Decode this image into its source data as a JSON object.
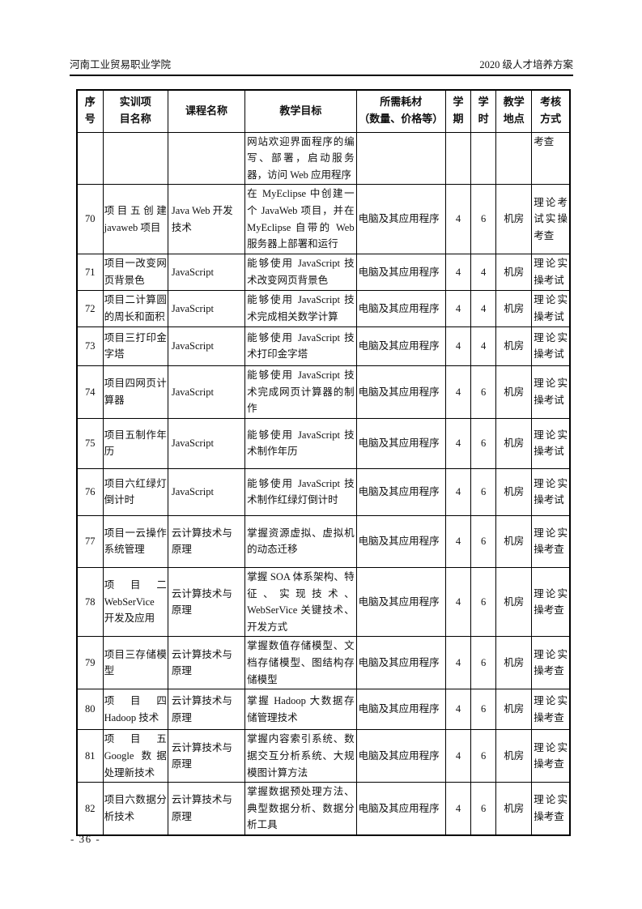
{
  "colors": {
    "ink": "#000000",
    "paper": "#ffffff"
  },
  "page": {
    "header_left": "河南工业贸易职业学院",
    "header_right": "2020 级人才培养方案",
    "footer_page_number": "- 36 -"
  },
  "table": {
    "columns": [
      {
        "key": "index",
        "label": "序\n号"
      },
      {
        "key": "project",
        "label": "实训项\n目名称"
      },
      {
        "key": "course",
        "label": "课程名称"
      },
      {
        "key": "goal",
        "label": "教学目标"
      },
      {
        "key": "materials",
        "label": "所需耗材\n（数量、价格等）"
      },
      {
        "key": "semester",
        "label": "学\n期"
      },
      {
        "key": "hours",
        "label": "学\n时"
      },
      {
        "key": "location",
        "label": "教学\n地点"
      },
      {
        "key": "assessment",
        "label": "考核\n方式"
      }
    ],
    "rows": [
      {
        "index": "",
        "project": "",
        "course": "",
        "goal": "网站欢迎界面程序的编写、部署，启动服务器，访问 Web 应用程序",
        "materials": "",
        "semester": "",
        "hours": "",
        "location": "",
        "assessment": "考查"
      },
      {
        "index": "70",
        "project": "项目五创建javaweb 项目",
        "course": "Java Web 开发技术",
        "goal": "在 MyEclipse 中创建一个 JavaWeb 项目，并在 MyEclipse 自带的 Web 服务器上部署和运行",
        "materials": "电脑及其应用程序",
        "semester": "4",
        "hours": "6",
        "location": "机房",
        "assessment": "理论考试实操考查"
      },
      {
        "index": "71",
        "project": "项目一改变网页背景色",
        "course": "JavaScript",
        "goal": "能够使用 JavaScript 技术改变网页背景色",
        "materials": "电脑及其应用程序",
        "semester": "4",
        "hours": "4",
        "location": "机房",
        "assessment": "理论实操考试"
      },
      {
        "index": "72",
        "project": "项目二计算圆的周长和面积",
        "course": "JavaScript",
        "goal": "能够使用 JavaScript 技术完成相关数学计算",
        "materials": "电脑及其应用程序",
        "semester": "4",
        "hours": "4",
        "location": "机房",
        "assessment": "理论实操考试"
      },
      {
        "index": "73",
        "project": "项目三打印金字塔",
        "course": "JavaScript",
        "goal": "能够使用 JavaScript 技术打印金字塔",
        "materials": "电脑及其应用程序",
        "semester": "4",
        "hours": "4",
        "location": "机房",
        "assessment": "理论实操考试"
      },
      {
        "index": "74",
        "project": "项目四网页计算器",
        "course": "JavaScript",
        "goal": "能够使用 JavaScript 技术完成网页计算器的制作",
        "materials": "电脑及其应用程序",
        "semester": "4",
        "hours": "6",
        "location": "机房",
        "assessment": "理论实操考试"
      },
      {
        "index": "75",
        "project": "项目五制作年历",
        "course": "JavaScript",
        "goal": "能够使用 JavaScript 技术制作年历",
        "materials": "电脑及其应用程序",
        "semester": "4",
        "hours": "6",
        "location": "机房",
        "assessment": "理论实操考试"
      },
      {
        "index": "76",
        "project": "项目六红绿灯倒计时",
        "course": "JavaScript",
        "goal": "能够使用 JavaScript 技术制作红绿灯倒计时",
        "materials": "电脑及其应用程序",
        "semester": "4",
        "hours": "6",
        "location": "机房",
        "assessment": "理论实操考试"
      },
      {
        "index": "77",
        "project": "项目一云操作系统管理",
        "course": "云计算技术与原理",
        "goal": "掌握资源虚拟、虚拟机的动态迁移",
        "materials": "电脑及其应用程序",
        "semester": "4",
        "hours": "6",
        "location": "机房",
        "assessment": "理论实操考查"
      },
      {
        "index": "78",
        "project": "项目二 WebSerVice 开发及应用",
        "course": "云计算技术与原理",
        "goal": "掌握 SOA 体系架构、特征、实现技术、WebSerVice 关键技术、开发方式",
        "materials": "电脑及其应用程序",
        "semester": "4",
        "hours": "6",
        "location": "机房",
        "assessment": "理论实操考查"
      },
      {
        "index": "79",
        "project": "项目三存储模型",
        "course": "云计算技术与原理",
        "goal": "掌握数值存储模型、文档存储模型、图结构存储模型",
        "materials": "电脑及其应用程序",
        "semester": "4",
        "hours": "6",
        "location": "机房",
        "assessment": "理论实操考查"
      },
      {
        "index": "80",
        "project": "项目四 Hadoop 技术",
        "course": "云计算技术与原理",
        "goal": "掌握 Hadoop 大数据存储管理技术",
        "materials": "电脑及其应用程序",
        "semester": "4",
        "hours": "6",
        "location": "机房",
        "assessment": "理论实操考查"
      },
      {
        "index": "81",
        "project": "项目五 Google 数据处理新技术",
        "course": "云计算技术与原理",
        "goal": "掌握内容索引系统、数据交互分析系统、大规模图计算方法",
        "materials": "电脑及其应用程序",
        "semester": "4",
        "hours": "6",
        "location": "机房",
        "assessment": "理论实操考查"
      },
      {
        "index": "82",
        "project": "项目六数据分析技术",
        "course": "云计算技术与原理",
        "goal": "掌握数据预处理方法、典型数据分析、数据分析工具",
        "materials": "电脑及其应用程序",
        "semester": "4",
        "hours": "6",
        "location": "机房",
        "assessment": "理论实操考查"
      }
    ]
  }
}
